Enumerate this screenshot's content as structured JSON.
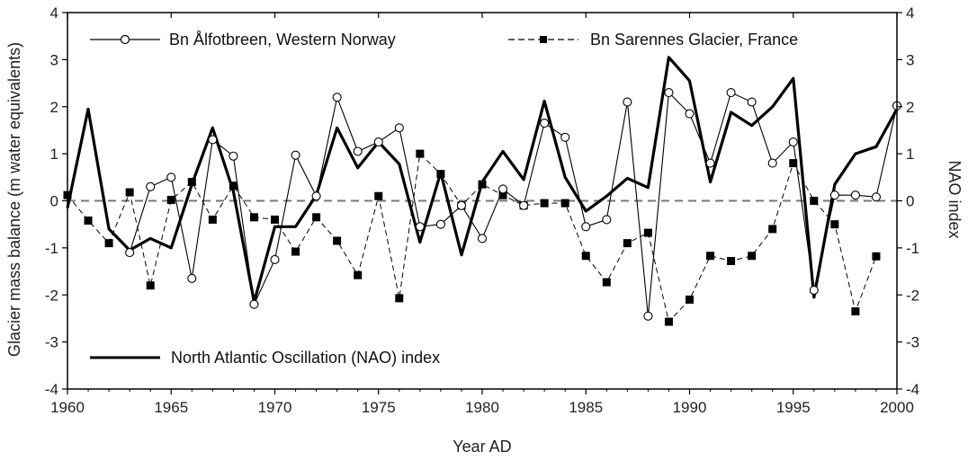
{
  "chart_data": {
    "type": "line",
    "xlabel": "Year AD",
    "ylabel": "Glacier mass balance (m water equivalents)",
    "y2label": "NAO index",
    "xlim": [
      1960,
      2000
    ],
    "ylim": [
      -4,
      4
    ],
    "y2lim": [
      -4,
      4
    ],
    "xticks": [
      1960,
      1965,
      1970,
      1975,
      1980,
      1985,
      1990,
      1995,
      2000
    ],
    "yticks": [
      -4,
      -3,
      -2,
      -1,
      0,
      1,
      2,
      3,
      4
    ],
    "zero_line": "dashed",
    "series": [
      {
        "name": "Bn Ålfotbreen, Western Norway",
        "style": "thin-line-open-circle",
        "color": "#000000",
        "x": [
          1963,
          1964,
          1965,
          1966,
          1967,
          1968,
          1969,
          1970,
          1971,
          1972,
          1973,
          1974,
          1975,
          1976,
          1977,
          1978,
          1979,
          1980,
          1981,
          1982,
          1983,
          1984,
          1985,
          1986,
          1987,
          1988,
          1989,
          1990,
          1991,
          1992,
          1993,
          1994,
          1995,
          1996,
          1997,
          1998,
          1999,
          2000
        ],
        "values": [
          -1.1,
          0.3,
          0.5,
          -1.65,
          1.3,
          0.95,
          -2.2,
          -1.25,
          0.97,
          0.1,
          2.2,
          1.05,
          1.25,
          1.55,
          -0.55,
          -0.5,
          -0.1,
          -0.8,
          0.25,
          -0.1,
          1.65,
          1.35,
          -0.55,
          -0.4,
          2.1,
          -2.45,
          2.3,
          1.85,
          0.8,
          2.3,
          2.1,
          0.8,
          1.25,
          -1.9,
          0.12,
          0.12,
          0.08,
          2.02
        ]
      },
      {
        "name": "Bn Sarennes Glacier, France",
        "style": "dashed-line-filled-square",
        "color": "#000000",
        "x": [
          1960,
          1961,
          1962,
          1963,
          1964,
          1965,
          1966,
          1967,
          1968,
          1969,
          1970,
          1971,
          1972,
          1973,
          1974,
          1975,
          1976,
          1977,
          1978,
          1979,
          1980,
          1981,
          1982,
          1983,
          1984,
          1985,
          1986,
          1987,
          1988,
          1989,
          1990,
          1991,
          1992,
          1993,
          1994,
          1995,
          1996,
          1997,
          1998,
          1999
        ],
        "values": [
          0.12,
          -0.42,
          -0.9,
          0.18,
          -1.8,
          0.02,
          0.4,
          -0.4,
          0.32,
          -0.35,
          -0.4,
          -1.08,
          -0.35,
          -0.85,
          -1.58,
          0.1,
          -2.07,
          1.0,
          0.57,
          -0.1,
          0.35,
          0.12,
          -0.1,
          -0.05,
          -0.05,
          -1.17,
          -1.73,
          -0.9,
          -0.68,
          -2.57,
          -2.1,
          -1.17,
          -1.28,
          -1.17,
          -0.6,
          0.8,
          0.0,
          -0.5,
          -2.35,
          -1.18
        ]
      },
      {
        "name": "North Atlantic Oscillation (NAO) index",
        "style": "thick-line",
        "color": "#000000",
        "x": [
          1960,
          1961,
          1962,
          1963,
          1964,
          1965,
          1966,
          1967,
          1968,
          1969,
          1970,
          1971,
          1972,
          1973,
          1974,
          1975,
          1976,
          1977,
          1978,
          1979,
          1980,
          1981,
          1982,
          1983,
          1984,
          1985,
          1986,
          1987,
          1988,
          1989,
          1990,
          1991,
          1992,
          1993,
          1994,
          1995,
          1996,
          1997,
          1998,
          1999,
          2000
        ],
        "values": [
          -0.15,
          1.95,
          -0.6,
          -1.05,
          -0.8,
          -1.0,
          0.35,
          1.55,
          0.2,
          -2.15,
          -0.55,
          -0.55,
          0.12,
          1.55,
          0.7,
          1.25,
          0.78,
          -0.88,
          0.6,
          -1.15,
          0.4,
          1.05,
          0.45,
          2.12,
          0.5,
          -0.22,
          0.1,
          0.48,
          0.28,
          3.05,
          2.55,
          0.4,
          1.88,
          1.6,
          2.0,
          2.6,
          -2.05,
          0.35,
          1.0,
          1.15,
          1.95
        ]
      }
    ],
    "legend": [
      "Bn Ålfotbreen, Western Norway",
      "Bn Sarennes Glacier, France",
      "North Atlantic Oscillation (NAO) index"
    ]
  }
}
